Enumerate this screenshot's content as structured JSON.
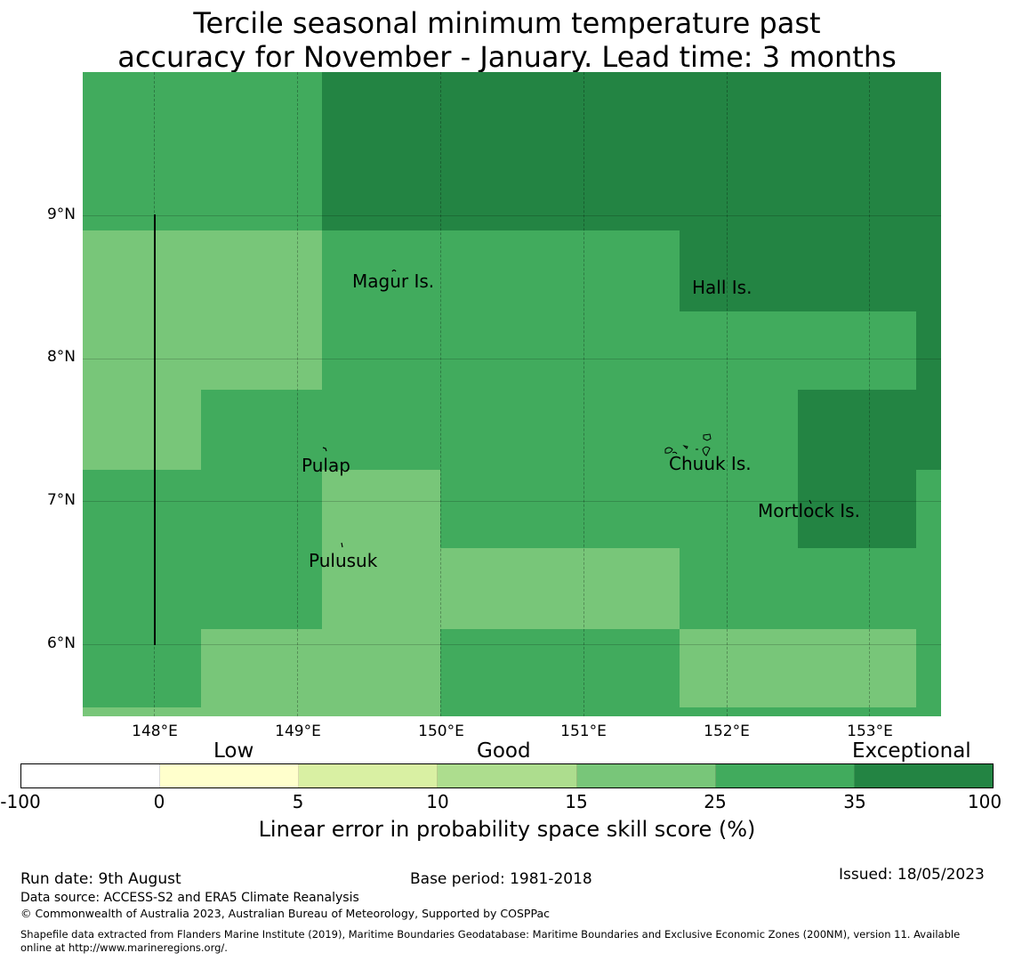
{
  "title": {
    "line1": "Tercile seasonal minimum temperature past",
    "line2": "accuracy for November - January. Lead time: 3 months"
  },
  "map": {
    "lon_labels": [
      "148°E",
      "149°E",
      "150°E",
      "151°E",
      "152°E",
      "153°E"
    ],
    "lat_labels": [
      "9°N",
      "8°N",
      "7°N",
      "6°N"
    ],
    "places": [
      "Magur Is.",
      "Hall Is.",
      "Pulap",
      "Chuuk Is.",
      "Mortlock Is.",
      "Pulusuk"
    ],
    "extent": {
      "lon": [
        147.5,
        153.5
      ],
      "lat": [
        5.5,
        10.0
      ]
    },
    "grid_cells": [
      {
        "lon0": 147.5,
        "lon1": 149.17,
        "lat0": 8.89,
        "lat1": 10.0,
        "skill_class": "25-35"
      },
      {
        "lon0": 149.17,
        "lon1": 153.5,
        "lat0": 8.89,
        "lat1": 10.0,
        "skill_class": "35-100"
      },
      {
        "lon0": 147.5,
        "lon1": 149.17,
        "lat0": 7.78,
        "lat1": 8.89,
        "skill_class": "15-25"
      },
      {
        "lon0": 149.17,
        "lon1": 151.67,
        "lat0": 7.78,
        "lat1": 8.89,
        "skill_class": "25-35"
      },
      {
        "lon0": 151.67,
        "lon1": 153.5,
        "lat0": 8.33,
        "lat1": 8.89,
        "skill_class": "35-100"
      },
      {
        "lon0": 151.67,
        "lon1": 153.33,
        "lat0": 7.78,
        "lat1": 8.33,
        "skill_class": "25-35"
      },
      {
        "lon0": 153.33,
        "lon1": 153.5,
        "lat0": 7.78,
        "lat1": 8.33,
        "skill_class": "35-100"
      },
      {
        "lon0": 147.5,
        "lon1": 148.33,
        "lat0": 7.22,
        "lat1": 7.78,
        "skill_class": "15-25"
      },
      {
        "lon0": 148.33,
        "lon1": 152.5,
        "lat0": 7.22,
        "lat1": 7.78,
        "skill_class": "25-35"
      },
      {
        "lon0": 152.5,
        "lon1": 153.5,
        "lat0": 7.22,
        "lat1": 7.78,
        "skill_class": "35-100"
      },
      {
        "lon0": 147.5,
        "lon1": 149.17,
        "lat0": 6.11,
        "lat1": 7.22,
        "skill_class": "25-35"
      },
      {
        "lon0": 149.17,
        "lon1": 150.0,
        "lat0": 6.11,
        "lat1": 7.22,
        "skill_class": "15-25"
      },
      {
        "lon0": 150.0,
        "lon1": 152.5,
        "lat0": 6.67,
        "lat1": 7.22,
        "skill_class": "25-35"
      },
      {
        "lon0": 152.5,
        "lon1": 153.33,
        "lat0": 6.67,
        "lat1": 7.22,
        "skill_class": "35-100"
      },
      {
        "lon0": 153.33,
        "lon1": 153.5,
        "lat0": 6.67,
        "lat1": 7.22,
        "skill_class": "25-35"
      },
      {
        "lon0": 150.0,
        "lon1": 151.67,
        "lat0": 6.11,
        "lat1": 6.67,
        "skill_class": "15-25"
      },
      {
        "lon0": 151.67,
        "lon1": 153.5,
        "lat0": 6.11,
        "lat1": 6.67,
        "skill_class": "25-35"
      },
      {
        "lon0": 147.5,
        "lon1": 148.33,
        "lat0": 5.56,
        "lat1": 6.11,
        "skill_class": "25-35"
      },
      {
        "lon0": 148.33,
        "lon1": 150.0,
        "lat0": 5.56,
        "lat1": 6.11,
        "skill_class": "15-25"
      },
      {
        "lon0": 150.0,
        "lon1": 151.67,
        "lat0": 5.5,
        "lat1": 6.11,
        "skill_class": "25-35"
      },
      {
        "lon0": 151.67,
        "lon1": 153.33,
        "lat0": 5.56,
        "lat1": 6.11,
        "skill_class": "15-25"
      },
      {
        "lon0": 153.33,
        "lon1": 153.5,
        "lat0": 5.5,
        "lat1": 6.11,
        "skill_class": "25-35"
      },
      {
        "lon0": 147.5,
        "lon1": 150.0,
        "lat0": 5.5,
        "lat1": 5.56,
        "skill_class": "15-25"
      },
      {
        "lon0": 151.67,
        "lon1": 153.33,
        "lat0": 5.5,
        "lat1": 5.56,
        "skill_class": "25-35"
      }
    ],
    "boundary_line": {
      "lon": 148.0,
      "lat": [
        6.0,
        9.0
      ]
    }
  },
  "legend": {
    "categories": [
      "Low",
      "Good",
      "Exceptional"
    ],
    "ticks": [
      "-100",
      "0",
      "5",
      "10",
      "15",
      "25",
      "35",
      "100"
    ],
    "colors": [
      "#ffffff",
      "#ffffcc",
      "#d9f0a3",
      "#addd8e",
      "#78c679",
      "#41ab5d",
      "#238443"
    ],
    "label": "Linear error in probability space skill score (%)"
  },
  "footer": {
    "run_date": "Run date: 9th August",
    "base_period": "Base period: 1981-2018",
    "issued": "Issued: 18/05/2023",
    "data_source": "Data source: ACCESS-S2 and ERA5 Climate Reanalysis",
    "copyright": "© Commonwealth of Australia 2023, Australian Bureau of Meteorology, Supported by COSPPac",
    "shapefile_line1": "Shapefile data extracted from Flanders Marine Institute (2019), Maritime Boundaries Geodatabase: Maritime Boundaries and Exclusive Economic Zones (200NM), version 11. Available",
    "shapefile_line2": "online at http://www.marineregions.org/."
  }
}
